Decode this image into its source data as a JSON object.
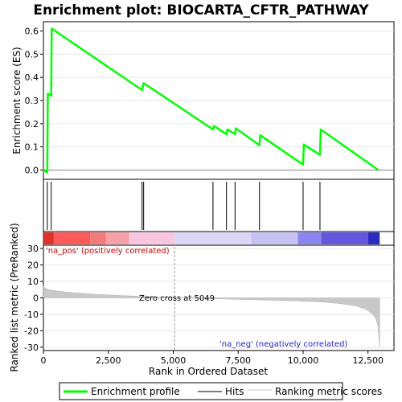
{
  "chart_data": [
    {
      "type": "line",
      "title": "Enrichment plot: BIOCARTA_CFTR_PATHWAY",
      "ylabel": "Enrichment score (ES)",
      "xlim": [
        0,
        13500
      ],
      "ylim": [
        -0.04,
        0.64
      ],
      "yticks": [
        0.0,
        0.1,
        0.2,
        0.3,
        0.4,
        0.5,
        0.6
      ],
      "yticklabels": [
        "0.0",
        "0.1",
        "0.2",
        "0.3",
        "0.4",
        "0.5",
        "0.6"
      ],
      "series": [
        {
          "name": "Enrichment profile",
          "color": "#00ff00",
          "x": [
            0,
            150,
            170,
            300,
            320,
            3800,
            3830,
            3860,
            6530,
            6560,
            7050,
            7080,
            7380,
            7410,
            8320,
            8350,
            10000,
            10030,
            10650,
            10680,
            12900
          ],
          "y": [
            0.0,
            -0.01,
            0.33,
            0.32,
            0.61,
            0.345,
            0.36,
            0.375,
            0.175,
            0.19,
            0.155,
            0.175,
            0.155,
            0.18,
            0.107,
            0.15,
            0.023,
            0.11,
            0.065,
            0.175,
            0.0
          ]
        }
      ]
    },
    {
      "type": "scatter",
      "name": "Hits",
      "hit_positions": [
        150,
        300,
        3800,
        3860,
        6530,
        7050,
        7380,
        8320,
        10000,
        10650
      ],
      "color": "#000000"
    },
    {
      "type": "heatmap",
      "name": "Rank gradient",
      "segments": [
        {
          "from": 0,
          "to": 400,
          "color": "#e0302c"
        },
        {
          "from": 400,
          "to": 1800,
          "color": "#fd5a5a"
        },
        {
          "from": 1800,
          "to": 2400,
          "color": "#f47b7b"
        },
        {
          "from": 2400,
          "to": 3300,
          "color": "#f6a0a8"
        },
        {
          "from": 3300,
          "to": 5050,
          "color": "#f9c6e0"
        },
        {
          "from": 5050,
          "to": 8000,
          "color": "#dcd6f6"
        },
        {
          "from": 8000,
          "to": 9800,
          "color": "#c6c2f2"
        },
        {
          "from": 9800,
          "to": 10700,
          "color": "#8a86ee"
        },
        {
          "from": 10700,
          "to": 12500,
          "color": "#6456dd"
        },
        {
          "from": 12500,
          "to": 12950,
          "color": "#2a2ac0"
        }
      ]
    },
    {
      "type": "area",
      "ylabel": "Ranked list metric (PreRanked)",
      "xlabel": "Rank in Ordered Dataset",
      "xlim": [
        0,
        13500
      ],
      "ylim": [
        -32,
        32
      ],
      "xticks": [
        0,
        2500,
        5000,
        7500,
        10000,
        12500
      ],
      "xticklabels": [
        "0",
        "2,500",
        "5,000",
        "7,500",
        "10,000",
        "12,500"
      ],
      "yticks": [
        30,
        20,
        10,
        0,
        -10,
        -20,
        -30
      ],
      "yticklabels": [
        "30",
        "20",
        "10",
        "0",
        "-10",
        "-20",
        "-30"
      ],
      "series": [
        {
          "name": "Ranking metric scores",
          "color": "#c8c8c8",
          "x": [
            0,
            50,
            200,
            500,
            1000,
            2000,
            3000,
            4000,
            5049,
            6000,
            7000,
            8000,
            9000,
            10000,
            10800,
            11500,
            12000,
            12400,
            12650,
            12800,
            12880,
            12950
          ],
          "y": [
            7.5,
            6.0,
            5.0,
            4.2,
            3.3,
            2.2,
            1.4,
            0.8,
            0.0,
            -0.4,
            -0.7,
            -1.1,
            -1.5,
            -2.0,
            -2.6,
            -3.6,
            -4.8,
            -6.8,
            -9.5,
            -12.5,
            -17.0,
            -30.0
          ]
        }
      ],
      "annotations": {
        "pos": "'na_pos' (positively correlated)",
        "neg": "'na_neg' (negatively correlated)",
        "zero": "Zero cross at 5049",
        "zero_x": 5049
      }
    }
  ],
  "legend": {
    "items": [
      {
        "label": "Enrichment profile",
        "color": "#00ff00",
        "style": "thick"
      },
      {
        "label": "Hits",
        "color": "#000000",
        "style": "thin"
      },
      {
        "label": "Ranking metric scores",
        "color": "#c8c8c8",
        "style": "thin"
      }
    ]
  }
}
